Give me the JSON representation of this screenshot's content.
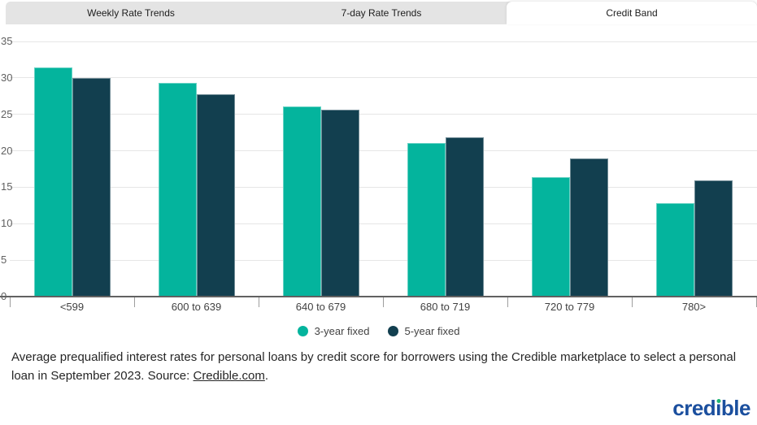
{
  "tabs": [
    {
      "label": "Weekly Rate Trends",
      "active": false
    },
    {
      "label": "7-day Rate Trends",
      "active": false
    },
    {
      "label": "Credit Band",
      "active": true
    }
  ],
  "chart_data": {
    "type": "bar",
    "title": "",
    "categories": [
      "<599",
      "600 to 639",
      "640 to 679",
      "680 to 719",
      "720 to 779",
      "780>"
    ],
    "series": [
      {
        "name": "3-year fixed",
        "color": "#04b49d",
        "values": [
          31.4,
          29.3,
          26.1,
          21.1,
          16.4,
          12.8
        ]
      },
      {
        "name": "5-year fixed",
        "color": "#123f4f",
        "values": [
          30.0,
          27.7,
          25.6,
          21.8,
          18.9,
          15.9
        ]
      }
    ],
    "xlabel": "",
    "ylabel": "",
    "ylim": [
      0,
      35
    ],
    "yticks": [
      0,
      5,
      10,
      15,
      20,
      25,
      30,
      35
    ],
    "ytick_step": 5,
    "grid": true,
    "legend_position": "bottom"
  },
  "caption": {
    "text_before_link": "Average prequalified interest rates for personal loans by credit score for borrowers using the Credible marketplace to select a personal loan in September 2023. Source: ",
    "link_text": "Credible.com",
    "text_after_link": "."
  },
  "logo": {
    "text": "credible",
    "color": "#1b4f9e",
    "dot_color": "#21b573"
  }
}
